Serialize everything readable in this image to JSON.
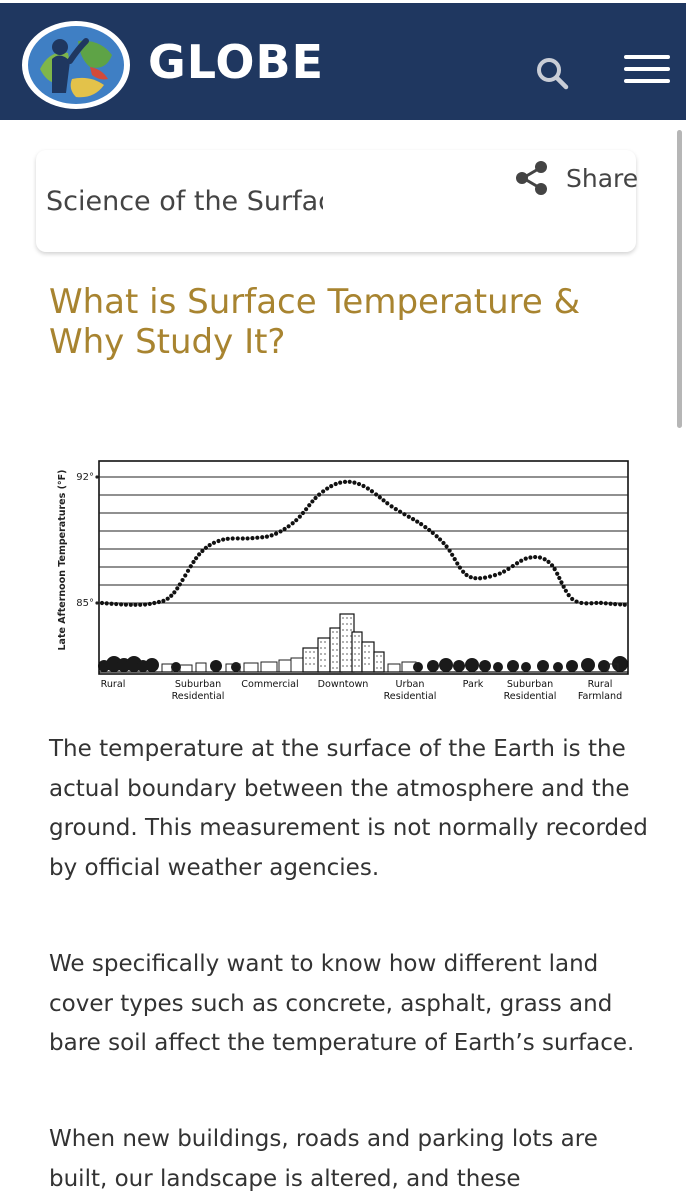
{
  "header": {
    "brand": "GLOBE",
    "logo_icon": "globe-logo-icon",
    "search_icon": "search-icon",
    "menu_icon": "hamburger-menu-icon",
    "background": "#1f3760"
  },
  "breadcrumb": {
    "current": "Science of the Surface",
    "share_label": "Share",
    "share_icon": "share-icon"
  },
  "article": {
    "title": "What is Surface Temperature & Why Study It?",
    "title_color": "#a88430",
    "paragraphs": [
      "The temperature at the surface of the Earth is the actual boundary between the atmosphere and the ground.  This measurement is not normally recorded by official weather agencies.",
      "We specifically want to know how different land cover types such as concrete, asphalt, grass and bare soil affect the temperature of Earth’s surface.",
      "When new buildings, roads and parking lots are built, our landscape is altered, and these"
    ]
  },
  "chart_data": {
    "type": "line",
    "title": "",
    "xlabel": "",
    "ylabel": "Late Afternoon Temperatures (°F)",
    "ylim": [
      85,
      92
    ],
    "ytick_labels": [
      "92°",
      "85°"
    ],
    "categories": [
      "Rural",
      "Suburban Residential",
      "Commercial",
      "Downtown",
      "Urban Residential",
      "Park",
      "Suburban Residential",
      "Rural Farmland"
    ],
    "series": [
      {
        "x": [
          0,
          0.4,
          0.7,
          0.95,
          1.3,
          1.6,
          2.0,
          2.3,
          2.6,
          2.9,
          3.2,
          3.5,
          3.9,
          4.3,
          4.6,
          4.9,
          5.3,
          5.7,
          6.0,
          6.3,
          6.7,
          7.0
        ],
        "values": [
          85.0,
          84.9,
          85.0,
          85.5,
          87.7,
          88.5,
          88.6,
          88.8,
          89.6,
          91.0,
          91.7,
          91.5,
          90.3,
          89.3,
          88.2,
          86.5,
          86.6,
          87.5,
          87.2,
          85.2,
          85.0,
          84.9
        ]
      }
    ],
    "grid": true,
    "legend": "none"
  }
}
